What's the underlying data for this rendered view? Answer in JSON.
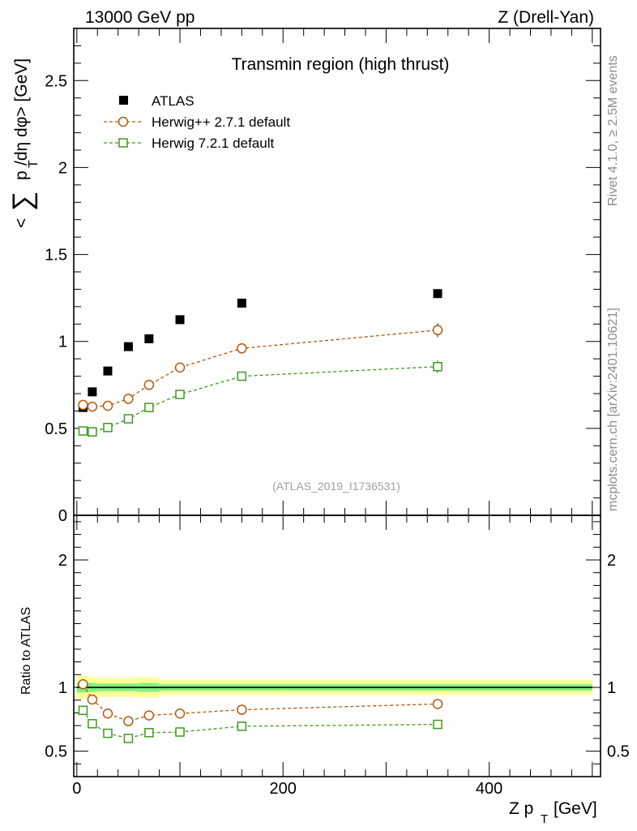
{
  "header": {
    "left": "13000 GeV pp",
    "right": "Z (Drell-Yan)"
  },
  "side_labels": {
    "upper": "Rivet 4.1.0, ≥ 2.5M events",
    "lower": "mcplots.cern.ch [arXiv:2401.10621]"
  },
  "colors": {
    "atlas": "#000000",
    "herwigpp": "#b35a0c",
    "herwig7": "#3d9a1b",
    "band_yellow": "#ffff99",
    "band_green": "#80f080"
  },
  "chart_data": [
    {
      "type": "scatter",
      "panel": "main",
      "title": "Transmin region (high thrust)",
      "ylabel_parts": {
        "lt": "<",
        "sum": "∑",
        "p": "p",
        "T": "T",
        "rest": "/dη dφ> [GeV]"
      },
      "xlabel": "",
      "source": "(ATLAS_2019_I1736531)",
      "xlim": [
        -3,
        508
      ],
      "ylim": [
        0,
        2.8
      ],
      "ytick_values": [
        0,
        0.5,
        1,
        1.5,
        2,
        2.5
      ],
      "ytick_labels": [
        "0",
        "0.5",
        "1",
        "1.5",
        "2",
        "2.5"
      ],
      "x": [
        6,
        15,
        30,
        50,
        70,
        100,
        160,
        350
      ],
      "series": [
        {
          "name": "ATLAS",
          "marker": "square-filled",
          "values": [
            0.62,
            0.71,
            0.83,
            0.97,
            1.015,
            1.125,
            1.22,
            1.275
          ],
          "errors": [
            0.01,
            0.01,
            0.01,
            0.01,
            0.01,
            0.01,
            0.01,
            0.01
          ]
        },
        {
          "name": "Herwig++ 2.7.1 default",
          "marker": "circle-open",
          "values": [
            0.635,
            0.625,
            0.63,
            0.67,
            0.75,
            0.85,
            0.96,
            1.065
          ],
          "errors": [
            0.01,
            0.01,
            0.01,
            0.01,
            0.01,
            0.01,
            0.01,
            0.04
          ]
        },
        {
          "name": "Herwig 7.2.1 default",
          "marker": "square-open",
          "values": [
            0.485,
            0.48,
            0.505,
            0.555,
            0.62,
            0.695,
            0.8,
            0.855
          ],
          "errors": [
            0.01,
            0.01,
            0.01,
            0.01,
            0.01,
            0.01,
            0.01,
            0.035
          ]
        }
      ]
    },
    {
      "type": "scatter",
      "panel": "ratio",
      "ylabel": "Ratio to ATLAS",
      "xlabel_parts": {
        "z": "Z p",
        "T": "T",
        "unit": "[GeV]"
      },
      "xlim": [
        -3,
        508
      ],
      "ylim": [
        0.3,
        2.35
      ],
      "xtick_values": [
        0,
        200,
        400
      ],
      "xtick_labels": [
        "0",
        "200",
        "400"
      ],
      "ytick_values": [
        0.5,
        1,
        2
      ],
      "ytick_labels": [
        "0.5",
        "1",
        "2"
      ],
      "x": [
        6,
        15,
        30,
        50,
        70,
        100,
        160,
        350
      ],
      "series": [
        {
          "name": "Herwig++ 2.7.1 default",
          "marker": "circle-open",
          "values": [
            1.025,
            0.905,
            0.795,
            0.735,
            0.78,
            0.795,
            0.825,
            0.87
          ],
          "errors": [
            0.01,
            0.01,
            0.01,
            0.01,
            0.01,
            0.01,
            0.01,
            0.025
          ]
        },
        {
          "name": "Herwig 7.2.1 default",
          "marker": "square-open",
          "values": [
            0.82,
            0.715,
            0.64,
            0.6,
            0.645,
            0.65,
            0.695,
            0.71
          ],
          "errors": [
            0.01,
            0.01,
            0.01,
            0.01,
            0.01,
            0.01,
            0.01,
            0.025
          ]
        }
      ],
      "band": {
        "edges": [
          0,
          10,
          20,
          40,
          60,
          80,
          120,
          200,
          500
        ],
        "yellow_half": [
          0.09,
          0.085,
          0.075,
          0.075,
          0.08,
          0.06,
          0.06,
          0.06
        ],
        "green_half": [
          0.04,
          0.035,
          0.03,
          0.03,
          0.035,
          0.025,
          0.025,
          0.025
        ]
      }
    }
  ]
}
